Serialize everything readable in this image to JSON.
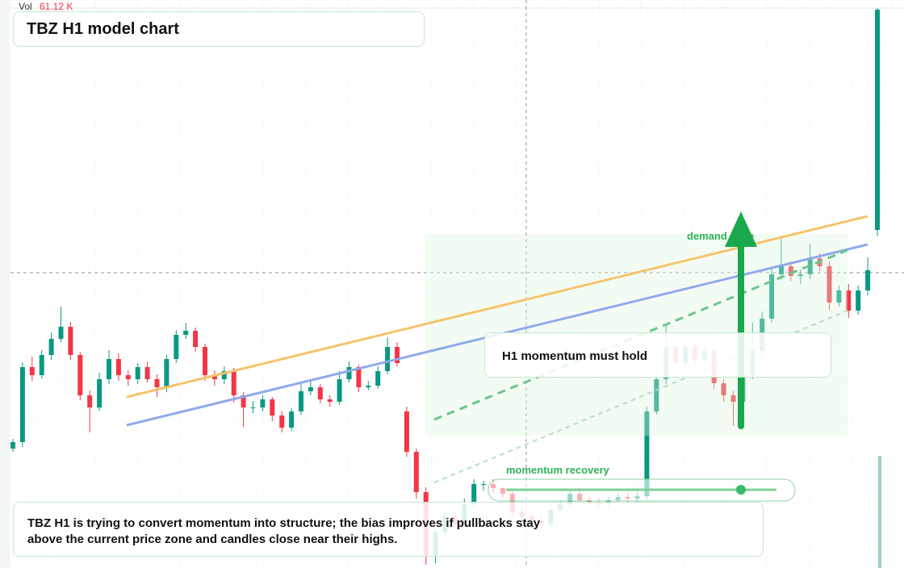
{
  "chart_data": {
    "type": "candlestick",
    "title": "TBZ H1 model chart",
    "volume_label": "Vol",
    "volume_text": "61.12 K",
    "annotations": {
      "zone": "demand zone",
      "hold": "H1 momentum must hold",
      "recovery": "momentum recovery",
      "note": "TBZ H1 is trying to convert momentum into structure; the bias improves if pullbacks stay above the current price zone and candles close near their highs."
    },
    "colors": {
      "up": "#089981",
      "down": "#f23645"
    },
    "ylim": [
      0,
      704
    ],
    "candles": [
      [
        148,
        160,
        144,
        156
      ],
      [
        156,
        255,
        150,
        249
      ],
      [
        249,
        262,
        232,
        239
      ],
      [
        239,
        270,
        235,
        264
      ],
      [
        264,
        292,
        258,
        284
      ],
      [
        284,
        324,
        280,
        299
      ],
      [
        299,
        305,
        258,
        264
      ],
      [
        264,
        268,
        208,
        214
      ],
      [
        214,
        220,
        168,
        199
      ],
      [
        199,
        242,
        195,
        234
      ],
      [
        234,
        270,
        228,
        259
      ],
      [
        259,
        266,
        232,
        239
      ],
      [
        239,
        245,
        226,
        234
      ],
      [
        234,
        254,
        228,
        249
      ],
      [
        249,
        256,
        230,
        234
      ],
      [
        234,
        240,
        212,
        224
      ],
      [
        224,
        264,
        218,
        259
      ],
      [
        259,
        295,
        254,
        289
      ],
      [
        289,
        304,
        284,
        294
      ],
      [
        294,
        298,
        268,
        274
      ],
      [
        274,
        278,
        232,
        239
      ],
      [
        239,
        245,
        226,
        234
      ],
      [
        234,
        250,
        228,
        244
      ],
      [
        244,
        248,
        205,
        214
      ],
      [
        214,
        218,
        175,
        199
      ],
      [
        199,
        207,
        192,
        199
      ],
      [
        199,
        214,
        194,
        209
      ],
      [
        209,
        212,
        182,
        189
      ],
      [
        189,
        194,
        168,
        174
      ],
      [
        174,
        198,
        170,
        194
      ],
      [
        194,
        228,
        190,
        219
      ],
      [
        219,
        232,
        214,
        224
      ],
      [
        224,
        228,
        204,
        209
      ],
      [
        209,
        214,
        200,
        206
      ],
      [
        206,
        244,
        202,
        234
      ],
      [
        234,
        256,
        230,
        249
      ],
      [
        249,
        252,
        218,
        224
      ],
      [
        224,
        232,
        220,
        226
      ],
      [
        226,
        250,
        222,
        244
      ],
      [
        244,
        286,
        240,
        274
      ],
      [
        274,
        280,
        250,
        254
      ],
      [
        194,
        200,
        138,
        144
      ],
      [
        144,
        148,
        86,
        94
      ],
      [
        94,
        100,
        4,
        14
      ],
      [
        14,
        50,
        6,
        44
      ],
      [
        44,
        70,
        38,
        64
      ],
      [
        64,
        70,
        48,
        54
      ],
      [
        54,
        86,
        50,
        79
      ],
      [
        79,
        110,
        74,
        104
      ],
      [
        104,
        108,
        96,
        104
      ],
      [
        104,
        110,
        94,
        99
      ],
      [
        99,
        100,
        88,
        92
      ],
      [
        92,
        96,
        62,
        69
      ],
      [
        69,
        74,
        58,
        64
      ],
      [
        64,
        68,
        52,
        59
      ],
      [
        59,
        64,
        48,
        54
      ],
      [
        54,
        78,
        50,
        72
      ],
      [
        72,
        84,
        68,
        79
      ],
      [
        79,
        98,
        76,
        92
      ],
      [
        92,
        96,
        80,
        84
      ],
      [
        84,
        88,
        78,
        82
      ],
      [
        82,
        86,
        76,
        80
      ],
      [
        80,
        88,
        76,
        84
      ],
      [
        84,
        92,
        80,
        88
      ],
      [
        88,
        92,
        82,
        86
      ],
      [
        86,
        94,
        82,
        89
      ],
      [
        89,
        200,
        86,
        194
      ],
      [
        194,
        244,
        190,
        234
      ],
      [
        234,
        300,
        228,
        274
      ],
      [
        274,
        280,
        248,
        254
      ],
      [
        254,
        282,
        248,
        274
      ],
      [
        274,
        278,
        252,
        259
      ],
      [
        259,
        276,
        254,
        269
      ],
      [
        269,
        272,
        222,
        229
      ],
      [
        229,
        234,
        206,
        214
      ],
      [
        214,
        220,
        176,
        206
      ],
      [
        206,
        244,
        200,
        239
      ],
      [
        239,
        304,
        234,
        269
      ],
      [
        269,
        318,
        262,
        309
      ],
      [
        309,
        372,
        304,
        364
      ],
      [
        364,
        412,
        358,
        374
      ],
      [
        374,
        380,
        356,
        362
      ],
      [
        362,
        370,
        352,
        364
      ],
      [
        364,
        402,
        358,
        384
      ],
      [
        384,
        390,
        368,
        374
      ],
      [
        374,
        380,
        320,
        329
      ],
      [
        329,
        350,
        324,
        344
      ],
      [
        344,
        352,
        310,
        319
      ],
      [
        319,
        350,
        314,
        344
      ],
      [
        344,
        385,
        338,
        369
      ],
      [
        419,
        694,
        412,
        692
      ]
    ]
  }
}
